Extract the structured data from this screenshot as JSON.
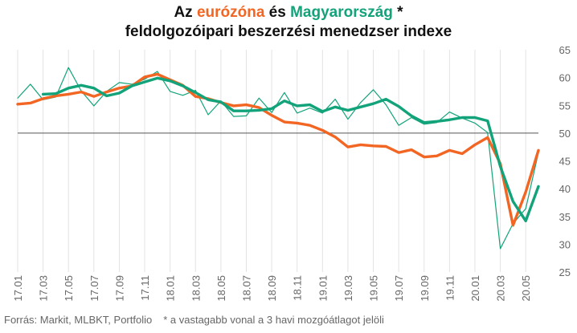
{
  "chart_data": {
    "type": "line",
    "title": {
      "part1": "Az ",
      "eurozone": "eurózóna",
      "part2": " és ",
      "hungary": "Magyarország",
      "part3": " *",
      "line2": "feldolgozóipari beszerzési menedzser indexe"
    },
    "x": [
      "17.01",
      "17.02",
      "17.03",
      "17.04",
      "17.05",
      "17.06",
      "17.07",
      "17.08",
      "17.09",
      "17.10",
      "17.11",
      "17.12",
      "18.01",
      "18.02",
      "18.03",
      "18.04",
      "18.05",
      "18.06",
      "18.07",
      "18.08",
      "18.09",
      "18.10",
      "18.11",
      "18.12",
      "19.01",
      "19.02",
      "19.03",
      "19.04",
      "19.05",
      "19.06",
      "19.07",
      "19.08",
      "19.09",
      "19.10",
      "19.11",
      "19.12",
      "20.01",
      "20.02",
      "20.03",
      "20.04",
      "20.05",
      "20.06"
    ],
    "x_tick_labels": [
      "17.01",
      "17.03",
      "17.05",
      "17.07",
      "17.09",
      "17.11",
      "18.01",
      "18.03",
      "18.05",
      "18.07",
      "18.09",
      "18.11",
      "19.01",
      "19.03",
      "19.05",
      "19.07",
      "19.09",
      "19.11",
      "20.01",
      "20.03",
      "20.05"
    ],
    "ylim": [
      25,
      65
    ],
    "y_ticks": [
      25,
      30,
      35,
      40,
      45,
      50,
      55,
      60,
      65
    ],
    "y_axis_side": "right",
    "reference_line": 50,
    "grid": "vertical",
    "series": [
      {
        "name": "eurózóna",
        "color": "#f26522",
        "style": "thick",
        "values": [
          55.2,
          55.4,
          56.2,
          56.7,
          57.0,
          57.4,
          56.6,
          57.4,
          58.1,
          58.5,
          60.1,
          60.6,
          59.6,
          58.6,
          56.6,
          56.2,
          55.5,
          54.9,
          55.1,
          54.6,
          53.2,
          52.0,
          51.8,
          51.4,
          50.5,
          49.3,
          47.5,
          47.9,
          47.7,
          47.6,
          46.5,
          47.0,
          45.7,
          45.9,
          46.9,
          46.3,
          47.9,
          49.2,
          44.5,
          33.4,
          39.4,
          46.9
        ]
      },
      {
        "name": "Magyarország",
        "color": "#13a37a",
        "style": "thin",
        "values": [
          56.3,
          58.8,
          56.0,
          56.5,
          61.8,
          57.6,
          54.9,
          57.5,
          59.1,
          58.8,
          59.7,
          61.1,
          57.5,
          56.8,
          57.7,
          53.3,
          55.8,
          53.0,
          53.1,
          56.3,
          53.7,
          57.3,
          53.6,
          54.5,
          53.6,
          56.1,
          52.5,
          55.5,
          57.8,
          55.1,
          51.4,
          52.8,
          51.6,
          51.9,
          53.8,
          52.7,
          51.8,
          50.1,
          29.2,
          33.7,
          36.4,
          46.5
        ]
      },
      {
        "name": "Magyarország (3 havi mozgóátlag)",
        "color": "#13a37a",
        "style": "thick",
        "values": [
          null,
          null,
          57.0,
          57.1,
          58.1,
          58.6,
          58.1,
          56.7,
          57.2,
          58.5,
          59.2,
          59.9,
          59.4,
          58.5,
          57.3,
          56.0,
          55.6,
          54.0,
          54.0,
          54.1,
          54.4,
          55.8,
          54.9,
          55.1,
          53.9,
          54.7,
          54.1,
          54.7,
          55.3,
          56.1,
          54.8,
          53.1,
          51.9,
          52.1,
          52.4,
          52.8,
          52.8,
          52.2,
          44.0,
          37.7,
          34.2,
          40.4
        ]
      }
    ]
  },
  "footer": {
    "source": "Forrás: Markit, MLBKT, Portfolio",
    "note": "* a vastagabb vonal a 3 havi mozgóátlagot jelöli"
  }
}
